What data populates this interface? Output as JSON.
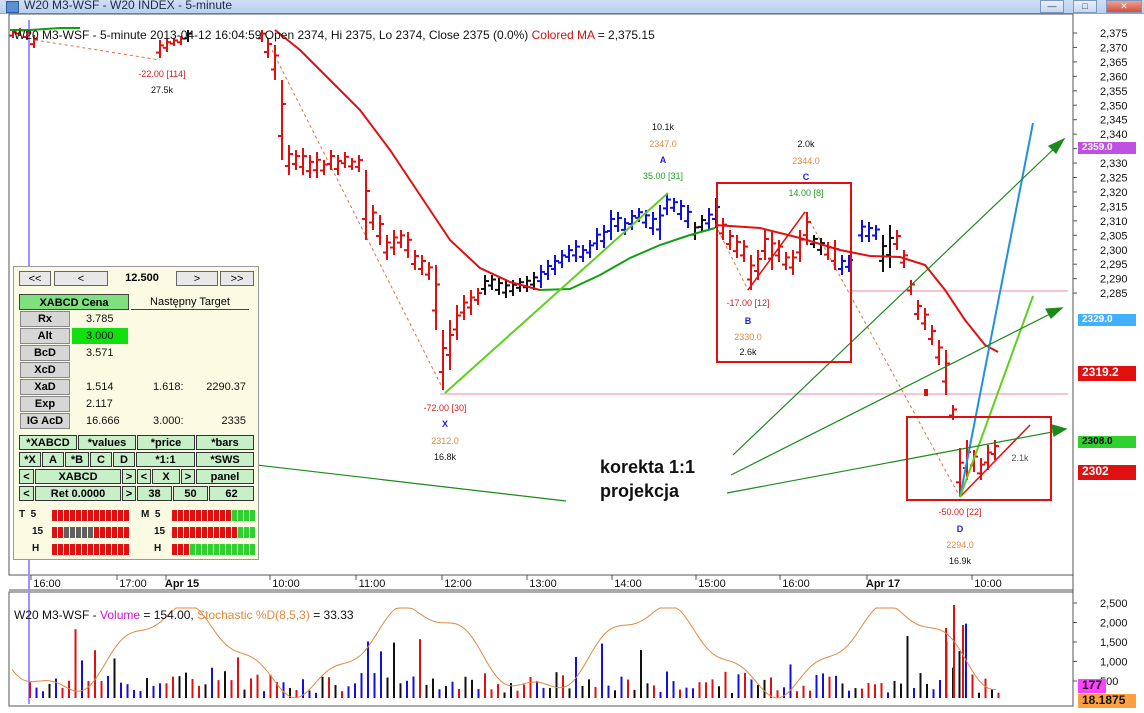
{
  "window": {
    "title": "W20 M3-WSF - W20 INDEX - 5-minute"
  },
  "legend": {
    "prefix": "W20 M3-WSF - 5-minute 2013-04-12 16:04:59 Open 2374, Hi 2375, Lo 2374, Close 2375 (0.0%)",
    "ma_label": "Colored MA",
    "ma_value": "= 2,375.15"
  },
  "volume_legend": {
    "prefix": "W20 M3-WSF -",
    "volume": "Volume",
    "volume_value": "= 154.00,",
    "stoch": "Stochastic %D(8,5,3)",
    "stoch_value": "= 33.33"
  },
  "price_axis": {
    "ticks": [
      "2,375",
      "2,370",
      "2,365",
      "2,360",
      "2,355",
      "2,350",
      "2,345",
      "2,340",
      "2,335",
      "2,330",
      "2,325",
      "2,320",
      "2,315",
      "2,310",
      "2,305",
      "2,300",
      "2,295",
      "2,290",
      "2,285"
    ],
    "tags": [
      {
        "label": "2359.0",
        "color": "#c050e0",
        "text_color": "#ffffff"
      },
      {
        "label": "2329.0",
        "color": "#40b0ff",
        "text_color": "#ffffff"
      },
      {
        "label": "2319.2",
        "color": "#e01010",
        "text_color": "#ffffff"
      },
      {
        "label": "2308.0",
        "color": "#30d030",
        "text_color": "#000000"
      },
      {
        "label": "2302",
        "color": "#e01010",
        "text_color": "#ffffff"
      }
    ]
  },
  "volume_axis": {
    "ticks": [
      "2,500",
      "2,000",
      "1,500",
      "1,000",
      "500"
    ],
    "tags": [
      {
        "label": "177",
        "color": "#ff40ff"
      },
      {
        "label": "18.1875",
        "color": "#ffa040"
      }
    ]
  },
  "time_axis": {
    "labels": [
      "16:00",
      "17:00",
      "Apr 15",
      "10:00",
      "11:00",
      "12:00",
      "13:00",
      "14:00",
      "15:00",
      "16:00",
      "Apr 17",
      "10:00"
    ]
  },
  "swings": {
    "top_left": {
      "change": "-22.00 [114]",
      "volume": "27.5k"
    },
    "X": {
      "change": "-72.00 [30]",
      "label": "X",
      "price": "2312.0",
      "volume": "16.8k"
    },
    "A": {
      "volume": "10.1k",
      "price": "2347.0",
      "label": "A",
      "change": "35.00 [31]"
    },
    "B": {
      "change": "-17.00 [12]",
      "label": "B",
      "price": "2330.0",
      "volume": "2.6k"
    },
    "C": {
      "volume": "2.0k",
      "price": "2344.0",
      "label": "C",
      "change": "14.00 [8]"
    },
    "D": {
      "change": "-50.00 [22]",
      "label": "D",
      "price": "2294.0",
      "volume": "16.9k"
    },
    "right": {
      "volume": "2.1k"
    }
  },
  "annotation": {
    "line1": "korekta 1:1",
    "line2": "projekcja"
  },
  "panel": {
    "nav": {
      "first": "<<",
      "prev": "<",
      "value": "12.500",
      "next": ">",
      "last": ">>"
    },
    "tabs": {
      "active": "XABCD Cena",
      "inactive": "Następny Target"
    },
    "rows": [
      {
        "label": "Rx",
        "v1": "3.785",
        "v2": "",
        "v3": ""
      },
      {
        "label": "Alt",
        "v1": "3.000",
        "v2": "",
        "v3": ""
      },
      {
        "label": "BcD",
        "v1": "3.571",
        "v2": "",
        "v3": ""
      },
      {
        "label": "XcD",
        "v1": "",
        "v2": "",
        "v3": ""
      },
      {
        "label": "XaD",
        "v1": "1.514",
        "v2": "1.618:",
        "v3": "2290.37"
      },
      {
        "label": "Exp",
        "v1": "2.117",
        "v2": "",
        "v3": ""
      },
      {
        "label": "IG AcD",
        "v1": "16.666",
        "v2": "3.000:",
        "v3": "2335"
      }
    ],
    "buttons": {
      "xabcd": "*XABCD",
      "values": "*values",
      "price": "*price",
      "bars": "*bars",
      "x": "*X",
      "a": "A",
      "b": "*B",
      "c": "C",
      "d": "D",
      "ratio": "*1:1",
      "sws": "*SWS",
      "left1": "<",
      "xabcd2": "XABCD",
      "right1": ">",
      "left2": "<",
      "x2": "X",
      "right2": ">",
      "panel": "panel",
      "left3": "<",
      "ret": "Ret 0.0000",
      "right3": ">",
      "n38": "38",
      "n50": "50",
      "n62": "62"
    },
    "meters": {
      "t": "T",
      "t_n": "5",
      "m": "M",
      "m_n": "5",
      "n15": "15",
      "n15b": "15",
      "h": "H",
      "hb": "H"
    }
  },
  "colors": {
    "up": "#1010e0",
    "down": "#e01010",
    "neutral": "#111111",
    "ma": "#e01010",
    "ma_green": "#10a010"
  }
}
